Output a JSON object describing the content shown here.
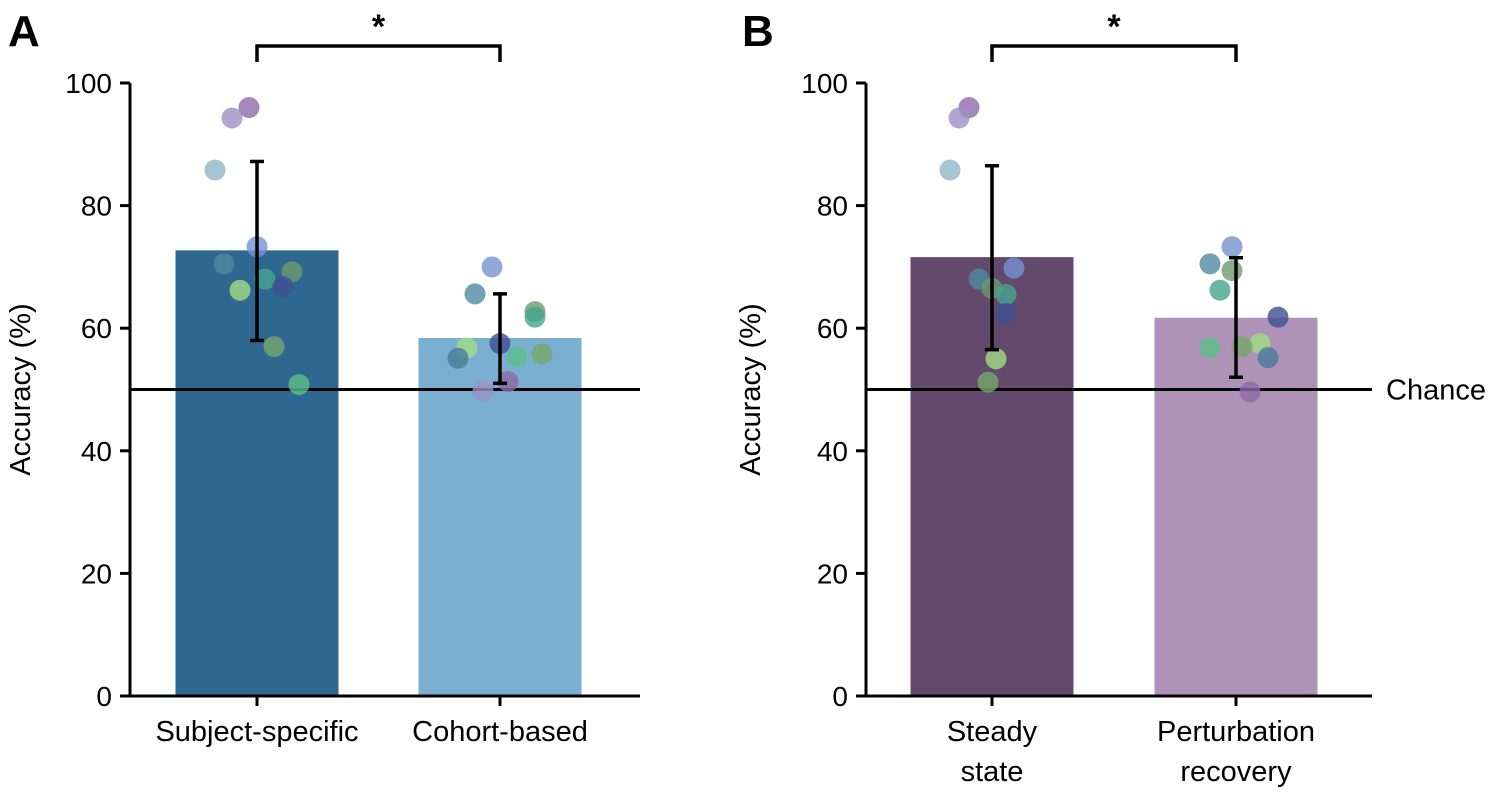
{
  "chart_data": [
    {
      "type": "bar",
      "panel_label": "A",
      "ylabel": "Accuracy (%)",
      "ylim": [
        0,
        100
      ],
      "yticks": [
        0,
        20,
        40,
        60,
        80,
        100
      ],
      "chance_level": 50,
      "categories": [
        "Subject-specific",
        "Cohort-based"
      ],
      "values": [
        72.7,
        58.4
      ],
      "error": [
        [
          58.0,
          87.2
        ],
        [
          51.0,
          65.6
        ]
      ],
      "colors": [
        "#2e6891",
        "#7aafd1"
      ],
      "significance": {
        "between": [
          0,
          1
        ],
        "label": "*"
      },
      "points": [
        [
          96.0,
          94.3,
          85.8,
          73.3,
          70.5,
          69.2,
          68.0,
          66.8,
          66.2,
          57.0,
          50.8
        ],
        [
          70.0,
          65.6,
          62.7,
          61.8,
          57.5,
          56.8,
          55.8,
          55.3,
          55.1,
          51.3,
          49.8
        ]
      ]
    },
    {
      "type": "bar",
      "panel_label": "B",
      "ylabel": "Accuracy (%)",
      "ylim": [
        0,
        100
      ],
      "yticks": [
        0,
        20,
        40,
        60,
        80,
        100
      ],
      "chance_level": 50,
      "chance_label": "Chance",
      "categories": [
        [
          "Steady",
          "state"
        ],
        [
          "Perturbation",
          "recovery"
        ]
      ],
      "values": [
        71.6,
        61.7
      ],
      "error": [
        [
          56.5,
          86.5
        ],
        [
          52.0,
          71.5
        ]
      ],
      "colors": [
        "#634a6d",
        "#af92b8"
      ],
      "significance": {
        "between": [
          0,
          1
        ],
        "label": "*"
      },
      "points": [
        [
          96.0,
          94.3,
          85.8,
          69.8,
          68.0,
          66.5,
          65.5,
          62.4,
          55.0,
          51.2
        ],
        [
          73.3,
          70.5,
          69.4,
          66.2,
          61.8,
          57.5,
          57.0,
          56.8,
          55.2,
          49.6
        ]
      ]
    }
  ]
}
